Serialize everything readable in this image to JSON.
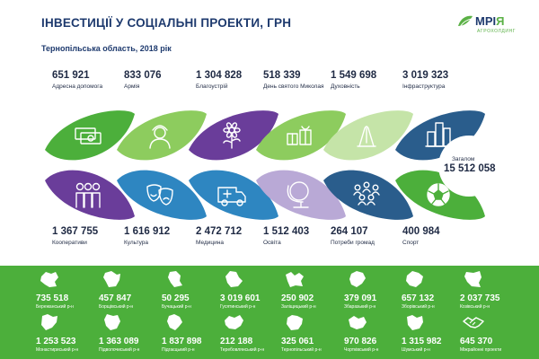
{
  "header": {
    "title": "ІНВЕСТИЦІЇ У СОЦІАЛЬНІ ПРОЕКТИ, ГРН",
    "subtitle": "Тернопільська область, 2018 рік"
  },
  "logo": {
    "name_main": "МРІ",
    "name_accent": "Я",
    "tagline": "АГРОХОЛДИНГ"
  },
  "colors": {
    "accent_green": "#4caf3b",
    "navy": "#1e3a6e",
    "light_green": "#8dcc5e",
    "teal_dark": "#2a5d8c",
    "teal": "#2e86c1",
    "purple": "#6a3d9a",
    "lavender": "#b9a9d6",
    "pale_green": "#c5e4a8"
  },
  "chart_data": [
    {
      "type": "bar",
      "title": "ІНВЕСТИЦІЇ У СОЦІАЛЬНІ ПРОЕКТИ, ГРН",
      "subtitle": "Тернопільська область, 2018 рік",
      "categories": [
        "Адресна допомога",
        "Армія",
        "Благоустрій",
        "День святого Миколая",
        "Духовність",
        "Інфраструктура",
        "Кооперативи",
        "Культура",
        "Медицина",
        "Освіта",
        "Потреби громад",
        "Спорт"
      ],
      "values": [
        651921,
        833076,
        1304828,
        518339,
        1549698,
        3019323,
        1367755,
        1616912,
        2472712,
        1512403,
        264107,
        400984
      ],
      "value_labels": [
        "651 921",
        "833 076",
        "1 304 828",
        "518 339",
        "1 549 698",
        "3 019 323",
        "1 367 755",
        "1 616 912",
        "2 472 712",
        "1 512 403",
        "264 107",
        "400 984"
      ],
      "icons": [
        "money-icon",
        "soldier-icon",
        "flower-icon",
        "gifts-icon",
        "praying-hands-icon",
        "city-buildings-icon",
        "people-group-icon",
        "theater-masks-icon",
        "ambulance-icon",
        "globe-icon",
        "community-icon",
        "football-icon"
      ],
      "leaf_colors": [
        "#4caf3b",
        "#8dcc5e",
        "#6a3d9a",
        "#8dcc5e",
        "#c5e4a8",
        "#2a5d8c",
        "#6a3d9a",
        "#2e86c1",
        "#2e86c1",
        "#b9a9d6",
        "#2a5d8c",
        "#4caf3b"
      ],
      "total_label": "Загалом",
      "total_value": "15 512 058"
    },
    {
      "type": "table",
      "categories": [
        "Бережанський р-н",
        "Борщівський р-н",
        "Бучацький р-н",
        "Гусятинський р-н",
        "Заліщицький р-н",
        "Збаразький р-н",
        "Зборівський р-н",
        "Козівський р-н",
        "Монастириський р-н",
        "Підволочиський р-н",
        "Підгаєцький р-н",
        "Теребовлянський р-н",
        "Тернопільський р-н",
        "Чортківський р-н",
        "Шумський р-н",
        "Міжрайонні проекти"
      ],
      "values": [
        735518,
        457847,
        50295,
        3019601,
        250902,
        379091,
        657132,
        2037735,
        1253523,
        1363089,
        1837898,
        212188,
        325061,
        970826,
        1315982,
        645370
      ],
      "value_labels": [
        "735 518",
        "457 847",
        "50 295",
        "3 019 601",
        "250 902",
        "379 091",
        "657 132",
        "2 037 735",
        "1 253 523",
        "1 363 089",
        "1 837 898",
        "212 188",
        "325 061",
        "970 826",
        "1 315 982",
        "645 370"
      ]
    }
  ]
}
